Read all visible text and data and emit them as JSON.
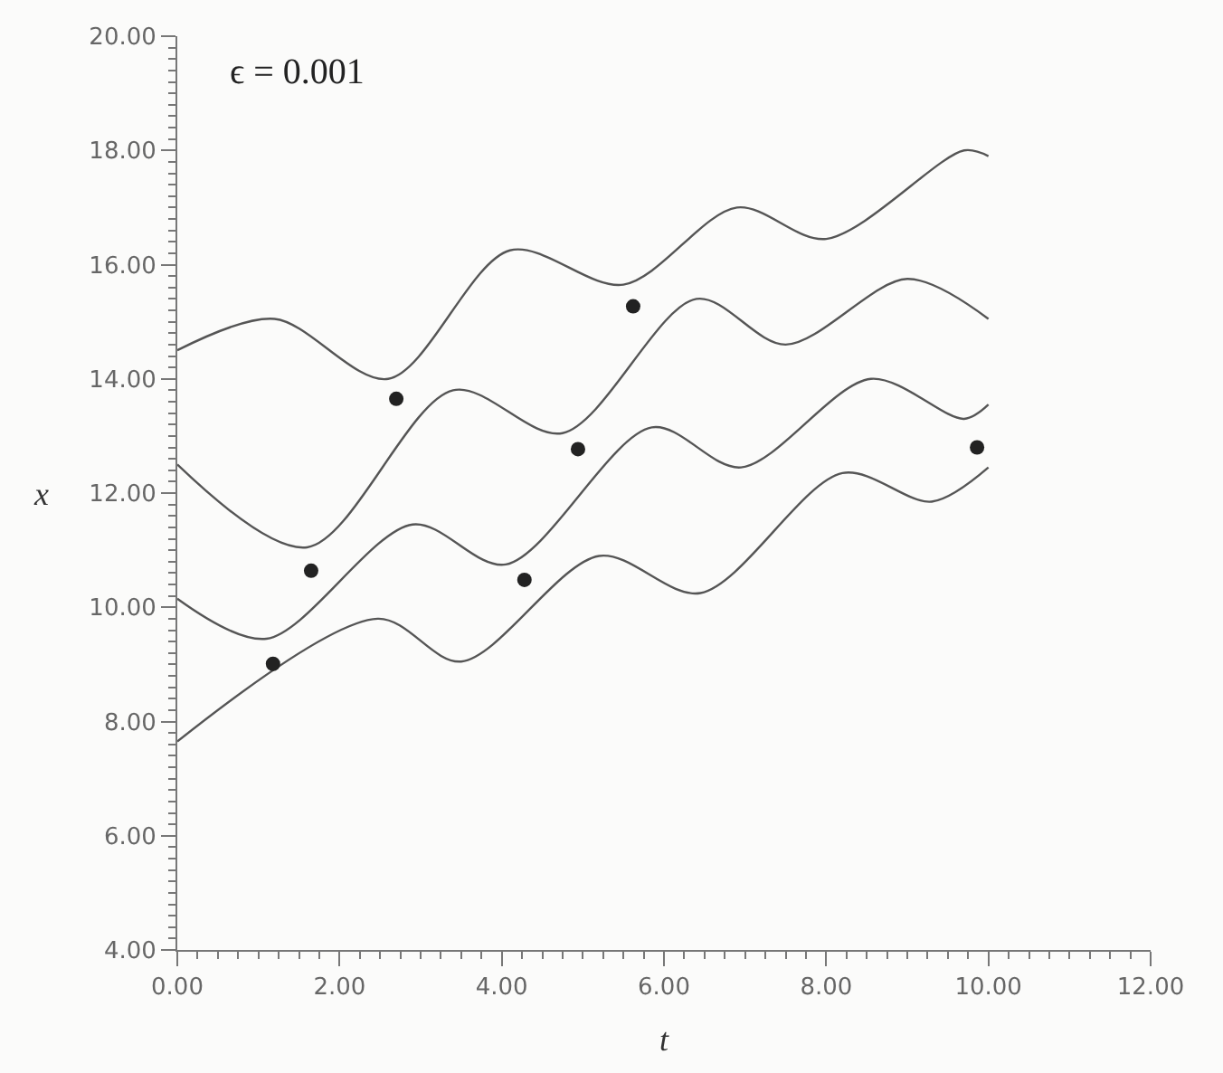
{
  "chart_data": {
    "type": "line",
    "xlabel": "t",
    "ylabel": "x",
    "annotations": [
      "ϵ = 0.001"
    ],
    "xlim": [
      0,
      12
    ],
    "ylim": [
      4,
      20
    ],
    "xticks": [
      {
        "value": 0,
        "label": "0.00"
      },
      {
        "value": 2,
        "label": "2.00"
      },
      {
        "value": 4,
        "label": "4.00"
      },
      {
        "value": 6,
        "label": "6.00"
      },
      {
        "value": 8,
        "label": "8.00"
      },
      {
        "value": 10,
        "label": "10.00"
      },
      {
        "value": 12,
        "label": "12.00"
      }
    ],
    "yticks": [
      {
        "value": 4,
        "label": "4.00"
      },
      {
        "value": 6,
        "label": "6.00"
      },
      {
        "value": 8,
        "label": "8.00"
      },
      {
        "value": 10,
        "label": "10.00"
      },
      {
        "value": 12,
        "label": "12.00"
      },
      {
        "value": 14,
        "label": "14.00"
      },
      {
        "value": 16,
        "label": "16.00"
      },
      {
        "value": 18,
        "label": "18.00"
      },
      {
        "value": 20,
        "label": "20.00"
      }
    ],
    "line_style": "solid",
    "series": [
      {
        "marker": "none",
        "color": "#555555",
        "x": [
          0,
          1.2,
          2.6,
          4.1,
          5.5,
          6.9,
          8.0,
          9.7,
          10.0
        ],
        "values": [
          14.5,
          15.05,
          14.0,
          16.25,
          15.65,
          17.0,
          16.45,
          18.0,
          17.9
        ]
      },
      {
        "marker": "none",
        "color": "#555555",
        "x": [
          0,
          1.6,
          3.4,
          4.75,
          6.4,
          7.5,
          9.0,
          10.0
        ],
        "values": [
          12.5,
          11.05,
          13.8,
          13.05,
          15.4,
          14.6,
          15.75,
          15.05
        ]
      },
      {
        "marker": "none",
        "color": "#555555",
        "x": [
          0,
          1.1,
          2.9,
          4.05,
          5.85,
          6.95,
          8.55,
          9.7,
          10.0
        ],
        "values": [
          10.15,
          9.45,
          11.45,
          10.75,
          13.15,
          12.45,
          14.0,
          13.3,
          13.55
        ]
      },
      {
        "marker": "none",
        "color": "#555555",
        "x": [
          0,
          2.47,
          3.5,
          5.2,
          6.45,
          8.2,
          9.3,
          10.0
        ],
        "values": [
          7.65,
          9.8,
          9.05,
          10.9,
          10.25,
          12.35,
          11.85,
          12.45
        ]
      },
      {
        "type": "scatter",
        "marker": "circle",
        "color": "#222222",
        "x": [
          1.18,
          1.65,
          2.7,
          4.28,
          4.94,
          5.62,
          9.86
        ],
        "values": [
          9.01,
          10.64,
          13.65,
          10.48,
          12.77,
          15.27,
          12.8
        ]
      }
    ]
  }
}
